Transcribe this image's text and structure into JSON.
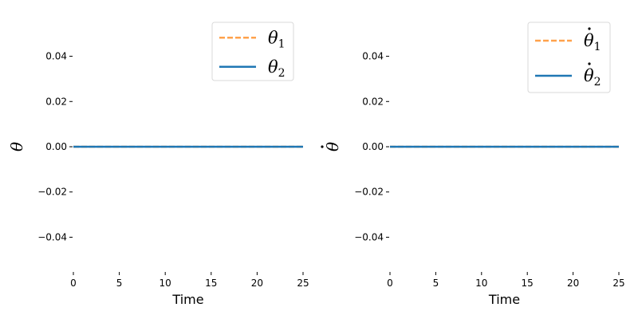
{
  "chart_data": [
    {
      "type": "line",
      "xlabel": "Time",
      "ylabel": "θ",
      "ylabel_dot": false,
      "xlim": [
        0,
        25
      ],
      "ylim": [
        -0.055,
        0.055
      ],
      "xticks": [
        0,
        5,
        10,
        15,
        20,
        25
      ],
      "xtick_labels": [
        "0",
        "5",
        "10",
        "15",
        "20",
        "25"
      ],
      "yticks": [
        0.04,
        0.02,
        0.0,
        -0.02,
        -0.04
      ],
      "ytick_labels": [
        "0.04",
        "0.02",
        "0.00",
        "−0.02",
        "−0.04"
      ],
      "grid": false,
      "legend_position": "top-right",
      "series": [
        {
          "name": "θ1",
          "symbol": "θ",
          "sub": "1",
          "dot": false,
          "color": "#ffa24c",
          "dash": "dashed",
          "x": [
            0,
            25
          ],
          "y": [
            0,
            0
          ]
        },
        {
          "name": "θ2",
          "symbol": "θ",
          "sub": "2",
          "dot": false,
          "color": "#1f77b4",
          "dash": "solid",
          "x": [
            0,
            25
          ],
          "y": [
            0,
            0
          ]
        }
      ]
    },
    {
      "type": "line",
      "xlabel": "Time",
      "ylabel": "θ",
      "ylabel_dot": true,
      "xlim": [
        0,
        25
      ],
      "ylim": [
        -0.055,
        0.055
      ],
      "xticks": [
        0,
        5,
        10,
        15,
        20,
        25
      ],
      "xtick_labels": [
        "0",
        "5",
        "10",
        "15",
        "20",
        "25"
      ],
      "yticks": [
        0.04,
        0.02,
        0.0,
        -0.02,
        -0.04
      ],
      "ytick_labels": [
        "0.04",
        "0.02",
        "0.00",
        "−0.02",
        "−0.04"
      ],
      "grid": false,
      "legend_position": "top-right",
      "series": [
        {
          "name": "θ̇1",
          "symbol": "θ",
          "sub": "1",
          "dot": true,
          "color": "#ffa24c",
          "dash": "dashed",
          "x": [
            0,
            25
          ],
          "y": [
            0,
            0
          ]
        },
        {
          "name": "θ̇2",
          "symbol": "θ",
          "sub": "2",
          "dot": true,
          "color": "#1f77b4",
          "dash": "solid",
          "x": [
            0,
            25
          ],
          "y": [
            0,
            0
          ]
        }
      ]
    }
  ]
}
